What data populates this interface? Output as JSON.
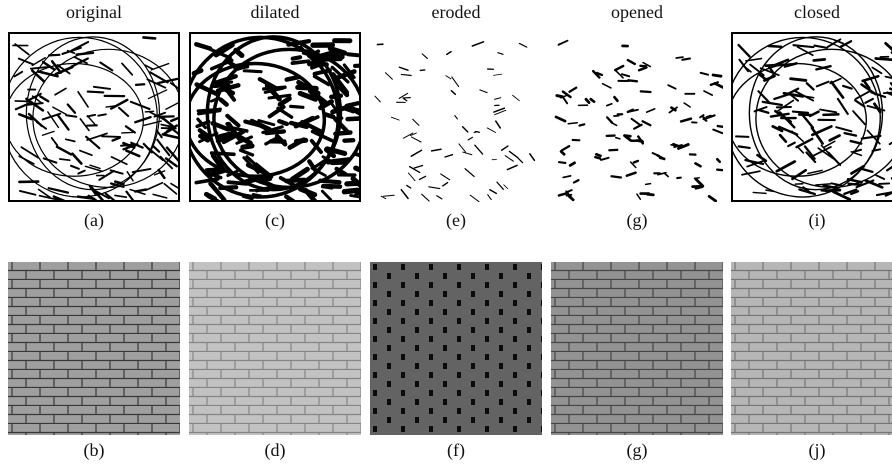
{
  "columns": [
    {
      "title": "original",
      "labels": [
        "(a)",
        "(b)"
      ]
    },
    {
      "title": "dilated",
      "labels": [
        "(c)",
        "(d)"
      ]
    },
    {
      "title": "eroded",
      "labels": [
        "(e)",
        "(f)"
      ]
    },
    {
      "title": "opened",
      "labels": [
        "(g)",
        "(g)"
      ]
    },
    {
      "title": "closed",
      "labels": [
        "(i)",
        "(j)"
      ]
    }
  ]
}
